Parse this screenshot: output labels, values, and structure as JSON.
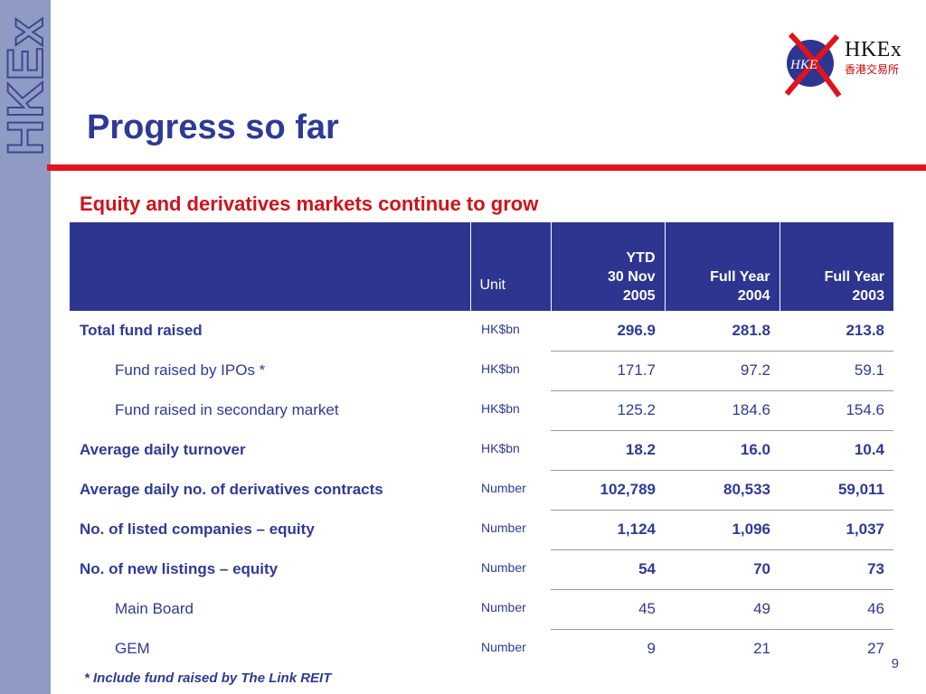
{
  "sidebar": {
    "logo_text": "HKEx"
  },
  "logo": {
    "text_en": "HKEx",
    "text_zh": "香港交易所",
    "mark_text": "HKE"
  },
  "slide": {
    "title": "Progress so far",
    "subtitle": "Equity and derivatives markets continue to grow",
    "page_number": "9"
  },
  "table": {
    "headers": {
      "unit": "Unit",
      "ytd": [
        "YTD",
        "30 Nov",
        "2005"
      ],
      "fy2004": [
        "Full Year",
        "2004"
      ],
      "fy2003": [
        "Full Year",
        "2003"
      ]
    },
    "rows": [
      {
        "label": "Total fund raised",
        "unit": "HK$bn",
        "ytd": "296.9",
        "fy2004": "281.8",
        "fy2003": "213.8"
      },
      {
        "label": "Fund raised by IPOs *",
        "unit": "HK$bn",
        "ytd": "171.7",
        "fy2004": "97.2",
        "fy2003": "59.1"
      },
      {
        "label": "Fund raised in secondary market",
        "unit": "HK$bn",
        "ytd": "125.2",
        "fy2004": "184.6",
        "fy2003": "154.6"
      },
      {
        "label": "Average daily turnover",
        "unit": "HK$bn",
        "ytd": "18.2",
        "fy2004": "16.0",
        "fy2003": "10.4"
      },
      {
        "label": "Average daily no. of derivatives contracts",
        "unit": "Number",
        "ytd": "102,789",
        "fy2004": "80,533",
        "fy2003": "59,011"
      },
      {
        "label": "No. of listed companies – equity",
        "unit": "Number",
        "ytd": "1,124",
        "fy2004": "1,096",
        "fy2003": "1,037"
      },
      {
        "label": "No. of new listings – equity",
        "unit": "Number",
        "ytd": "54",
        "fy2004": "70",
        "fy2003": "73"
      },
      {
        "label": "Main Board",
        "unit": "Number",
        "ytd": "45",
        "fy2004": "49",
        "fy2003": "46"
      },
      {
        "label": "GEM",
        "unit": "Number",
        "ytd": "9",
        "fy2004": "21",
        "fy2003": "27"
      }
    ]
  },
  "footnote": {
    "marker": "*",
    "text": "Include fund raised by The Link REIT"
  },
  "colors": {
    "brand_blue": "#2e3590",
    "accent_red": "#e3131b",
    "sidebar": "#8f9bc4"
  }
}
